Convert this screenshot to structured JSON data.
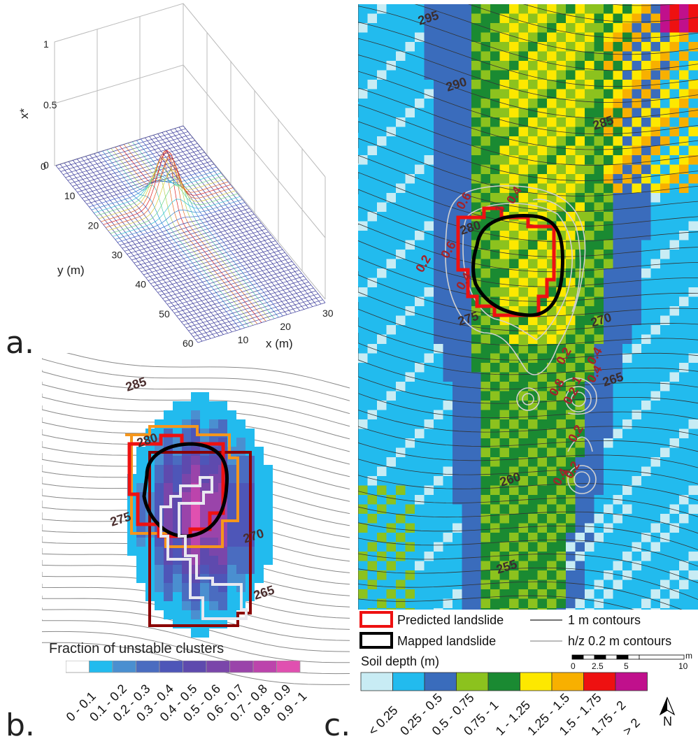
{
  "panel_labels": {
    "a": "a.",
    "b": "b.",
    "c": "c."
  },
  "panel_a": {
    "zlabel": "x*",
    "ylabel": "y (m)",
    "xlabel": "x (m)",
    "z_ticks": [
      "0",
      "0.5",
      "1"
    ],
    "y_ticks": [
      "0",
      "10",
      "20",
      "30",
      "40",
      "50",
      "60"
    ],
    "x_ticks": [
      "0",
      "10",
      "20",
      "30"
    ]
  },
  "panel_b": {
    "contour_labels": [
      "285",
      "280",
      "275",
      "270",
      "265"
    ],
    "legend_title": "Fraction of unstable clusters",
    "legend_classes": [
      "0 - 0.1",
      "0.1 - 0.2",
      "0.2 - 0.3",
      "0.3 - 0.4",
      "0.4 - 0.5",
      "0.5 - 0.6",
      "0.6 - 0.7",
      "0.7 - 0.8",
      "0.8 - 0.9",
      "0.9 - 1"
    ],
    "legend_colors": [
      "#ffffff",
      "#22bbee",
      "#4a8fd0",
      "#4a6cc0",
      "#4e56b8",
      "#5e4aae",
      "#7a46aa",
      "#9a44aa",
      "#bc44ac",
      "#e050b0"
    ]
  },
  "panel_c": {
    "contour_labels": [
      "295",
      "290",
      "285",
      "280",
      "275",
      "270",
      "265",
      "260",
      "255"
    ],
    "hz_labels": [
      "0.6",
      "1",
      "0.4",
      "0.2",
      "0.6",
      "0.4",
      "0.2",
      "0.4",
      "0.8",
      "1",
      "0.4",
      "0.2",
      "0.2",
      "0.4",
      "0.2"
    ],
    "legend": {
      "predicted": "Predicted landslide",
      "mapped": "Mapped landslide",
      "contours_1m": "1 m contours",
      "contours_hz": "h/z 0.2 m contours"
    },
    "soil_title": "Soil depth (m)",
    "soil_classes": [
      "< 0.25",
      "0.25 - 0.5",
      "0.5 - 0.75",
      "0.75 - 1",
      "1 - 1.25",
      "1.25 - 1.5",
      "1.5 - 1.75",
      "1.75 - 2",
      "> 2"
    ],
    "soil_colors": [
      "#c8ecf4",
      "#22bbee",
      "#3a6cbc",
      "#8cc21e",
      "#1a8a32",
      "#fde800",
      "#f8b000",
      "#ee1111",
      "#c0108c"
    ],
    "scale_ticks": [
      "0",
      "2.5",
      "5",
      "10"
    ],
    "scale_unit": "m",
    "north": "N"
  },
  "colors": {
    "predicted": "#ee1111",
    "mapped": "#000000",
    "orange": "#f5961c",
    "darkred": "#8b0000",
    "light": "#dddddd"
  }
}
